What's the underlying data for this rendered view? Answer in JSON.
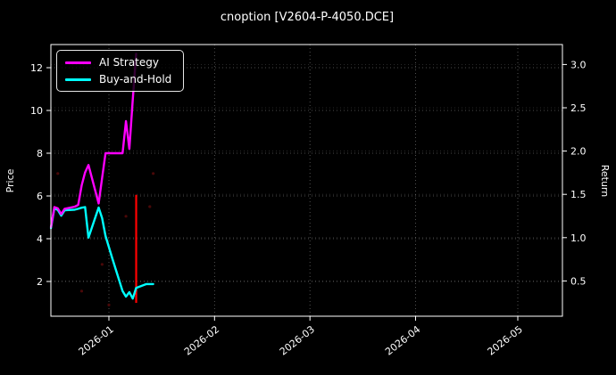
{
  "title": "cnoption [V2604-P-4050.DCE]",
  "colors": {
    "background": "#000000",
    "text": "#ffffff",
    "grid": "#777777",
    "axis": "#ffffff",
    "ai_strategy": "#ff00ff",
    "buy_and_hold": "#00ffff",
    "event_line": "#ff0000",
    "noise_dot": "#4a0808"
  },
  "legend": {
    "items": [
      {
        "label": "AI Strategy",
        "color": "#ff00ff"
      },
      {
        "label": "Buy-and-Hold",
        "color": "#00ffff"
      }
    ]
  },
  "axes": {
    "left_label": "Price",
    "right_label": "Return",
    "left_ticks": [
      "2",
      "4",
      "6",
      "8",
      "10",
      "12"
    ],
    "right_ticks": [
      "0.5",
      "1.0",
      "1.5",
      "2.0",
      "2.5",
      "3.0"
    ],
    "x_ticks": [
      "2026-01",
      "2026-02",
      "2026-03",
      "2026-04",
      "2026-05"
    ]
  },
  "chart_data": {
    "type": "line",
    "title": "cnoption [V2604-P-4050.DCE]",
    "xlabel": "",
    "ylabel_left": "Price",
    "ylabel_right": "Return",
    "x_range": [
      "2025-12-15",
      "2026-05-14"
    ],
    "ylim_price": [
      0.4,
      13.1
    ],
    "ylim_return": [
      0.1,
      3.27
    ],
    "return_equals_price_divided_by": 4.05,
    "grid": true,
    "legend_position": "upper-left",
    "x_tick_dates": [
      "2026-01-01",
      "2026-02-01",
      "2026-03-01",
      "2026-04-01",
      "2026-05-01"
    ],
    "price_ticks": [
      2,
      4,
      6,
      8,
      10,
      12
    ],
    "return_ticks": [
      0.5,
      1.0,
      1.5,
      2.0,
      2.5,
      3.0
    ],
    "series": [
      {
        "name": "AI Strategy",
        "color": "#ff00ff",
        "axis": "price",
        "dates": [
          "2025-12-15",
          "2025-12-16",
          "2025-12-17",
          "2025-12-18",
          "2025-12-19",
          "2025-12-22",
          "2025-12-23",
          "2025-12-24",
          "2025-12-25",
          "2025-12-26",
          "2025-12-29",
          "2025-12-30",
          "2025-12-31",
          "2026-01-02",
          "2026-01-05",
          "2026-01-06",
          "2026-01-07",
          "2026-01-08",
          "2026-01-09"
        ],
        "values": [
          4.55,
          5.48,
          5.42,
          5.15,
          5.4,
          5.5,
          5.58,
          6.5,
          7.1,
          7.45,
          5.65,
          6.85,
          8.0,
          8.0,
          8.0,
          9.5,
          8.2,
          10.5,
          12.65
        ]
      },
      {
        "name": "Buy-and-Hold",
        "color": "#00ffff",
        "axis": "price",
        "dates": [
          "2025-12-15",
          "2025-12-16",
          "2025-12-17",
          "2025-12-18",
          "2025-12-19",
          "2025-12-22",
          "2025-12-23",
          "2025-12-24",
          "2025-12-25",
          "2025-12-26",
          "2025-12-29",
          "2025-12-30",
          "2025-12-31",
          "2026-01-02",
          "2026-01-05",
          "2026-01-06",
          "2026-01-07",
          "2026-01-08",
          "2026-01-09",
          "2026-01-12",
          "2026-01-13",
          "2026-01-14"
        ],
        "values": [
          4.5,
          5.42,
          5.35,
          5.08,
          5.33,
          5.36,
          5.4,
          5.45,
          5.48,
          4.05,
          5.46,
          4.96,
          4.13,
          3.08,
          1.55,
          1.29,
          1.5,
          1.2,
          1.7,
          1.88,
          1.88,
          1.88
        ]
      }
    ],
    "event_vline": {
      "date": "2026-01-09",
      "from_price": 1.0,
      "to_price": 6.05,
      "color": "#ff0000"
    },
    "noise_dots": [
      {
        "date": "2025-12-17",
        "price": 7.05
      },
      {
        "date": "2025-12-24",
        "price": 1.55
      },
      {
        "date": "2025-12-30",
        "price": 2.8
      },
      {
        "date": "2026-01-01",
        "price": 0.9
      },
      {
        "date": "2026-01-06",
        "price": 5.05
      },
      {
        "date": "2026-01-13",
        "price": 5.5
      },
      {
        "date": "2026-01-14",
        "price": 7.05
      }
    ]
  }
}
